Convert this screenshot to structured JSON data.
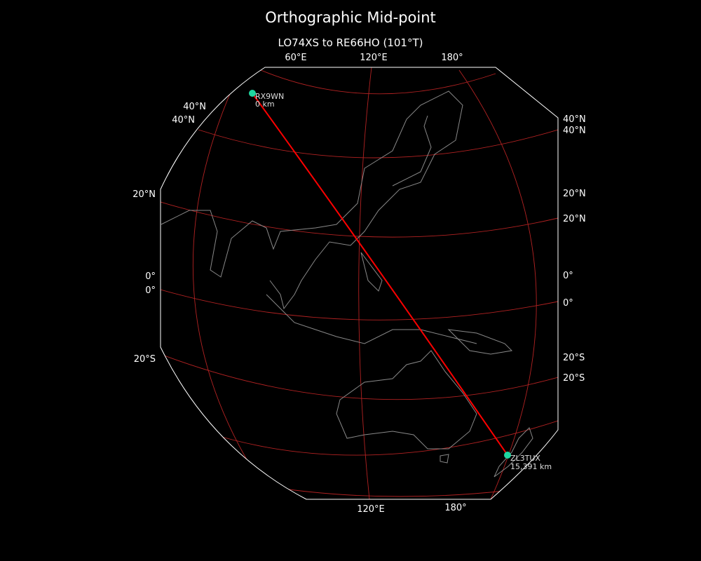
{
  "title": "Orthographic Mid-point",
  "subtitle": "LO74XS to RE66HO (101°T)",
  "colors": {
    "background": "#000000",
    "boundary": "#ffffff",
    "graticule": "#b22222",
    "path": "#ff0000",
    "station": "#1fd6a0",
    "coastline": "#888888"
  },
  "top_lon_labels": [
    "60°E",
    "120°E",
    "180°"
  ],
  "bottom_lon_labels": [
    "120°E",
    "180°"
  ],
  "left_lat_labels": [
    "40°N",
    "40°N",
    "20°N",
    "0°",
    "0°",
    "20°S"
  ],
  "right_lat_labels": [
    "40°N",
    "40°N",
    "20°N",
    "20°N",
    "0°",
    "0°",
    "20°S",
    "20°S"
  ],
  "stations": [
    {
      "call": "RX9WN",
      "distance": "0 km"
    },
    {
      "call": "ZL3TUX",
      "distance": "15,391 km"
    }
  ]
}
